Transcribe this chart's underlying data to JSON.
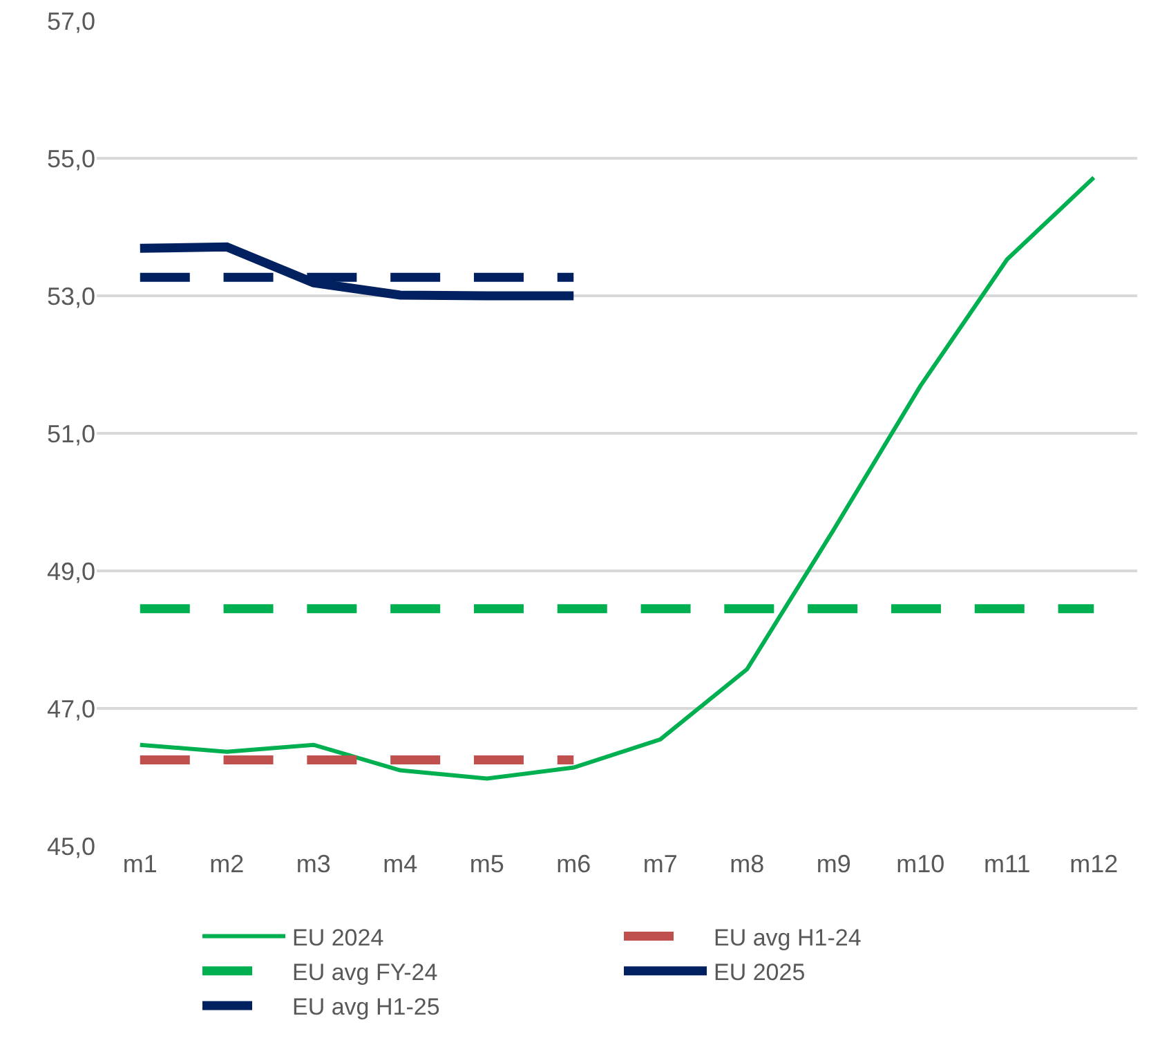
{
  "chart_data": {
    "type": "line",
    "categories": [
      "m1",
      "m2",
      "m3",
      "m4",
      "m5",
      "m6",
      "m7",
      "m8",
      "m9",
      "m10",
      "m11",
      "m12"
    ],
    "series": [
      {
        "name": "EU 2024",
        "color": "#00b050",
        "line_style": "solid",
        "values": [
          46.47,
          46.37,
          46.47,
          46.1,
          45.98,
          46.14,
          46.55,
          47.57,
          49.6,
          51.69,
          53.53,
          54.72
        ]
      },
      {
        "name": "EU avg H1-24",
        "color": "#c0504d",
        "line_style": "dashed",
        "values": [
          46.25,
          46.25,
          46.25,
          46.25,
          46.25,
          46.25,
          null,
          null,
          null,
          null,
          null,
          null
        ]
      },
      {
        "name": "EU avg FY-24",
        "color": "#00b050",
        "line_style": "dashed",
        "values": [
          48.45,
          48.45,
          48.45,
          48.45,
          48.45,
          48.45,
          48.45,
          48.45,
          48.45,
          48.45,
          48.45,
          48.45
        ]
      },
      {
        "name": "EU 2025",
        "color": "#002060",
        "line_style": "solid",
        "values": [
          53.69,
          53.71,
          53.19,
          53.01,
          53.0,
          53.0,
          null,
          null,
          null,
          null,
          null,
          null
        ]
      },
      {
        "name": "EU avg H1-25",
        "color": "#002060",
        "line_style": "dashed",
        "values": [
          53.27,
          53.27,
          53.27,
          53.27,
          53.27,
          53.27,
          null,
          null,
          null,
          null,
          null,
          null
        ]
      }
    ],
    "ylim": [
      45,
      57
    ],
    "yticks": [
      {
        "value": 45,
        "label": "45,0"
      },
      {
        "value": 47,
        "label": "47,0"
      },
      {
        "value": 49,
        "label": "49,0"
      },
      {
        "value": 51,
        "label": "51,0"
      },
      {
        "value": 53,
        "label": "53,0"
      },
      {
        "value": 55,
        "label": "55,0"
      },
      {
        "value": 57,
        "label": "57,0"
      }
    ],
    "grid": "y",
    "legend": "bottom",
    "marker": "none"
  }
}
